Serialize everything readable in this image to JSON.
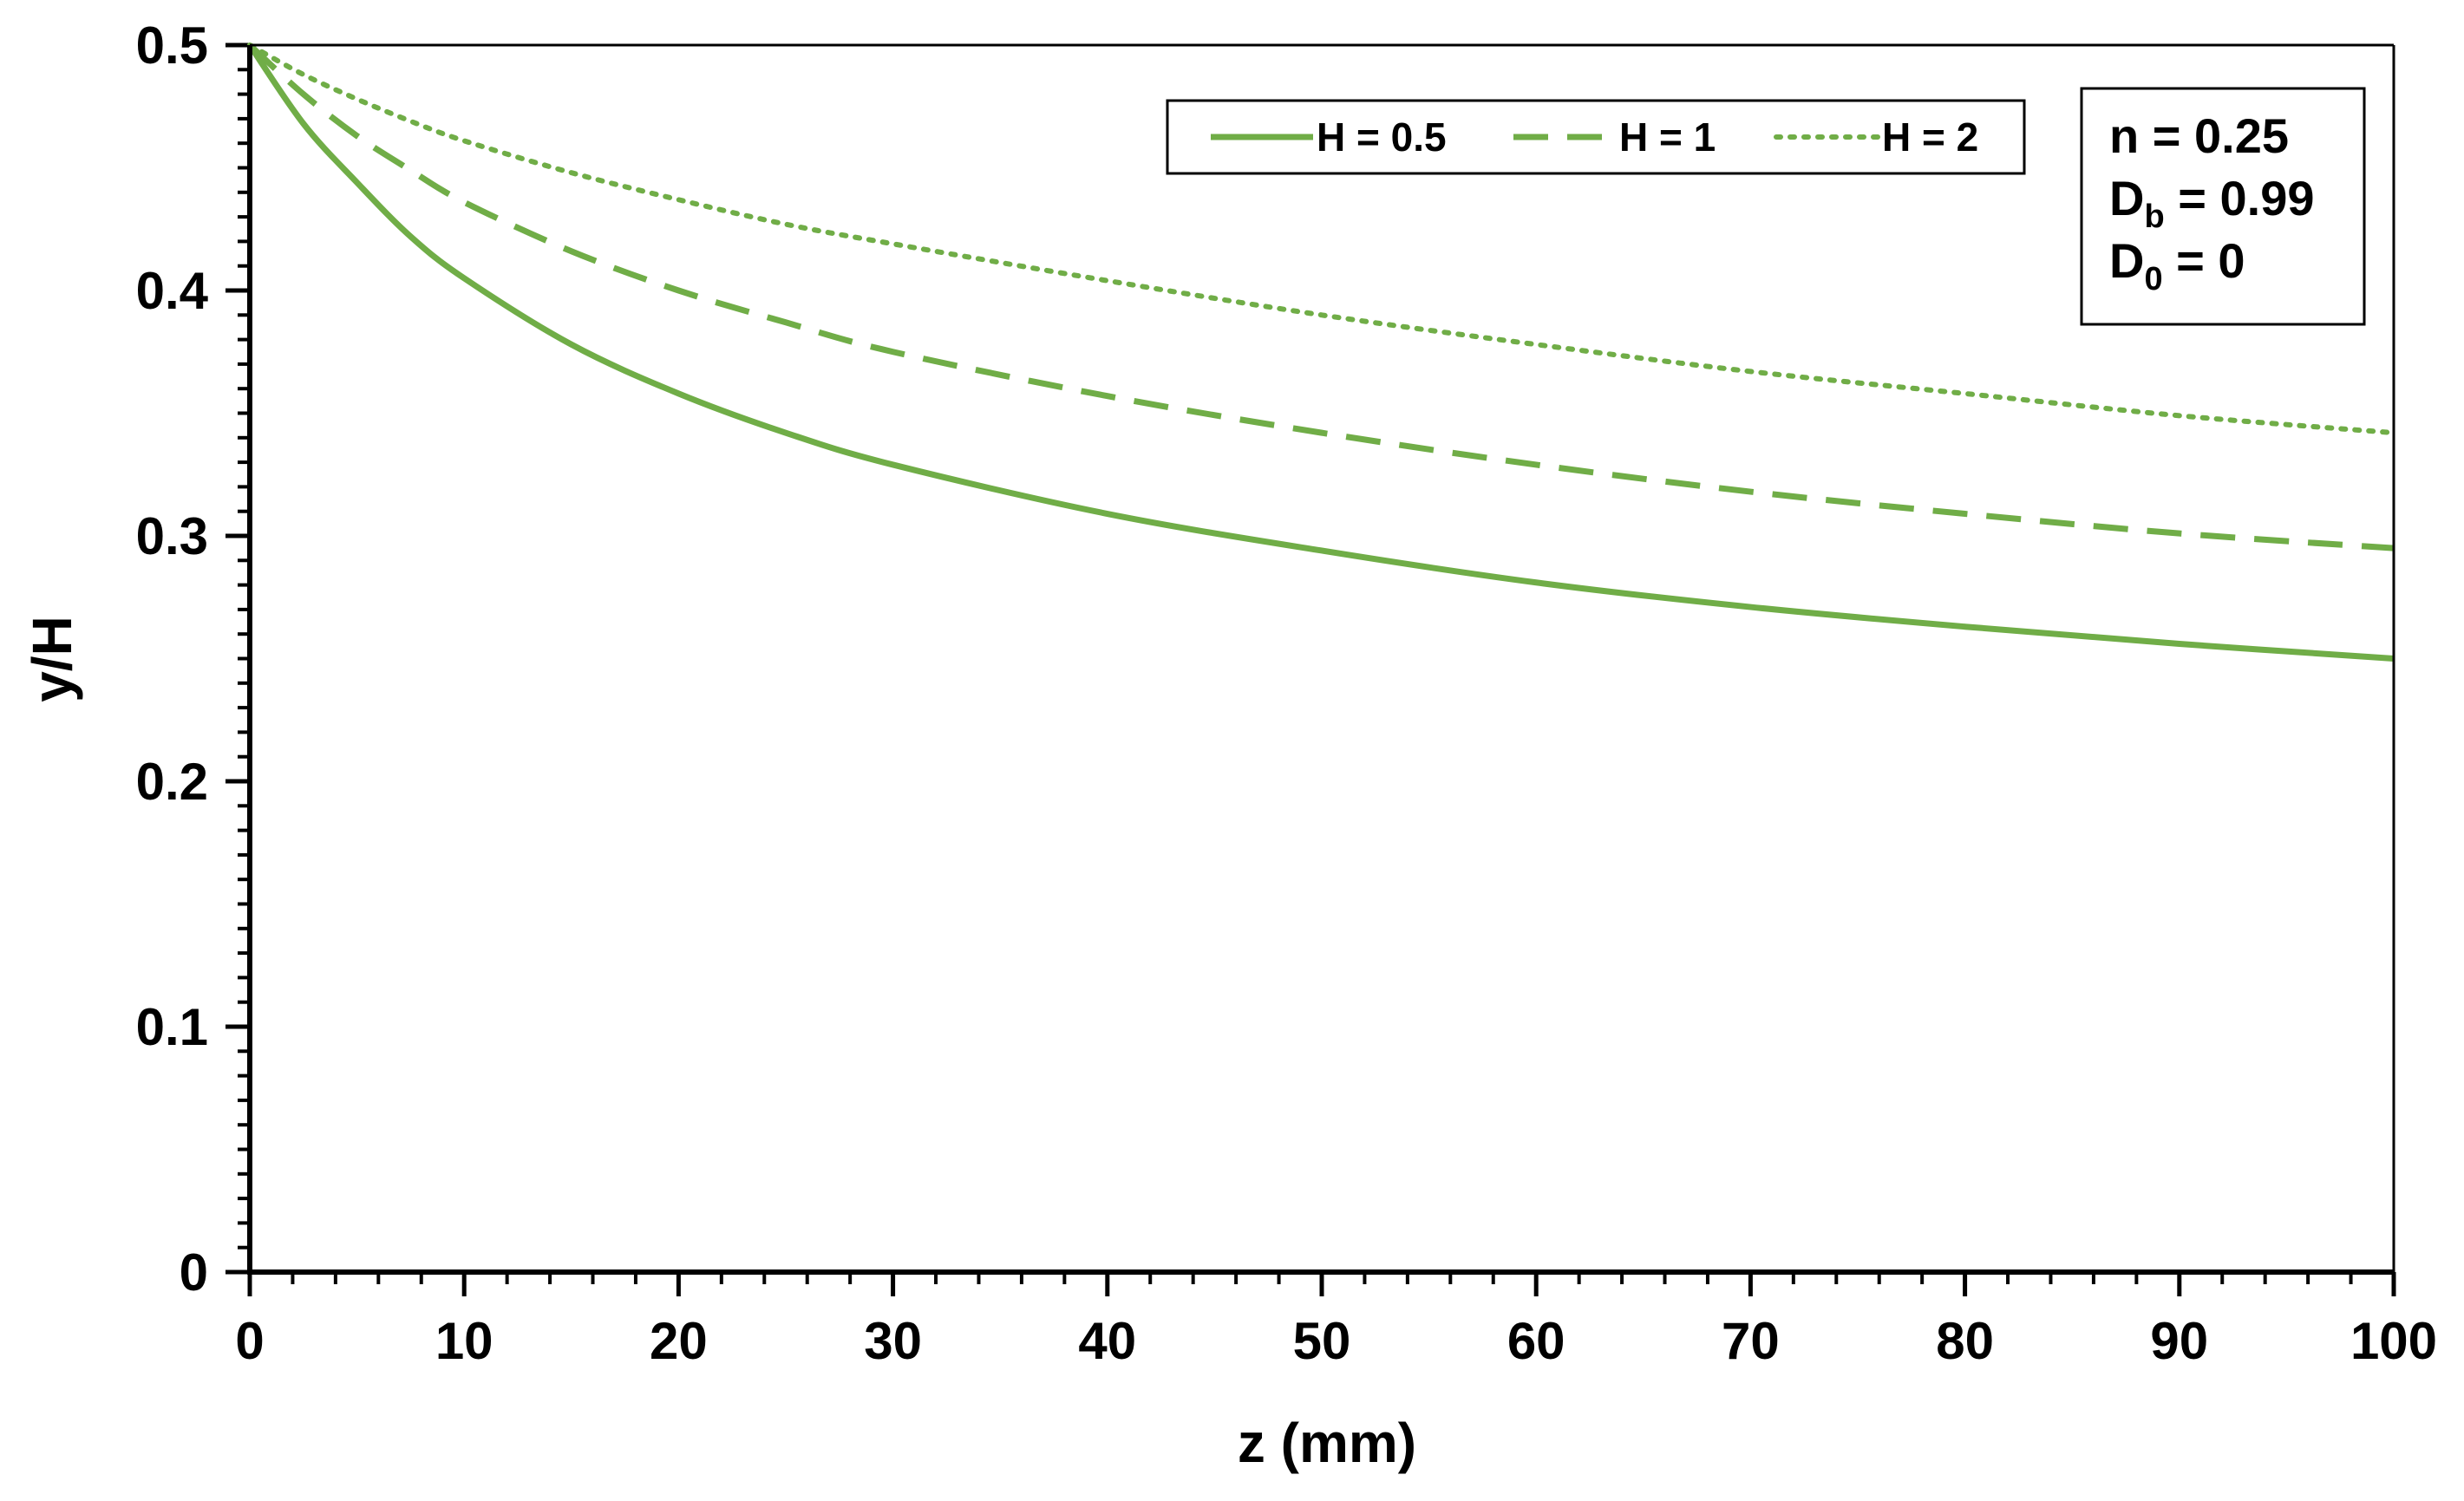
{
  "chart_data": {
    "type": "line",
    "xlabel": "z (mm)",
    "ylabel": "y/H",
    "xlim": [
      0,
      100
    ],
    "ylim": [
      0,
      0.5
    ],
    "x_ticks": [
      0,
      10,
      20,
      30,
      40,
      50,
      60,
      70,
      80,
      90,
      100
    ],
    "y_ticks": [
      0,
      0.1,
      0.2,
      0.3,
      0.4,
      0.5
    ],
    "x_tick_labels": [
      "0",
      "10",
      "20",
      "30",
      "40",
      "50",
      "60",
      "70",
      "80",
      "90",
      "100"
    ],
    "y_tick_labels": [
      "0",
      "0.1",
      "0.2",
      "0.3",
      "0.4",
      "0.5"
    ],
    "grid": false,
    "legend_position": "top-right",
    "color": "#70ad47",
    "x": [
      0,
      2.5,
      5,
      7.5,
      10,
      15,
      20,
      25,
      30,
      40,
      50,
      60,
      70,
      80,
      90,
      100
    ],
    "series": [
      {
        "name": "H = 0.5",
        "style": "solid",
        "values": [
          0.5,
          0.468,
          0.444,
          0.422,
          0.405,
          0.378,
          0.358,
          0.342,
          0.329,
          0.309,
          0.294,
          0.281,
          0.271,
          0.263,
          0.256,
          0.25
        ]
      },
      {
        "name": "H = 1",
        "style": "dashed",
        "values": [
          0.5,
          0.48,
          0.463,
          0.449,
          0.436,
          0.416,
          0.4,
          0.387,
          0.375,
          0.357,
          0.342,
          0.329,
          0.318,
          0.309,
          0.301,
          0.295
        ]
      },
      {
        "name": "H = 2",
        "style": "dotted",
        "values": [
          0.5,
          0.488,
          0.478,
          0.469,
          0.461,
          0.448,
          0.437,
          0.427,
          0.419,
          0.404,
          0.39,
          0.378,
          0.367,
          0.358,
          0.349,
          0.342
        ]
      }
    ],
    "annotation": {
      "lines": [
        {
          "base": "n = 0.25",
          "sub": "",
          "rest": ""
        },
        {
          "base": "D",
          "sub": "b",
          "rest": " = 0.99"
        },
        {
          "base": "D",
          "sub": "0",
          "rest": " = 0"
        }
      ]
    }
  }
}
